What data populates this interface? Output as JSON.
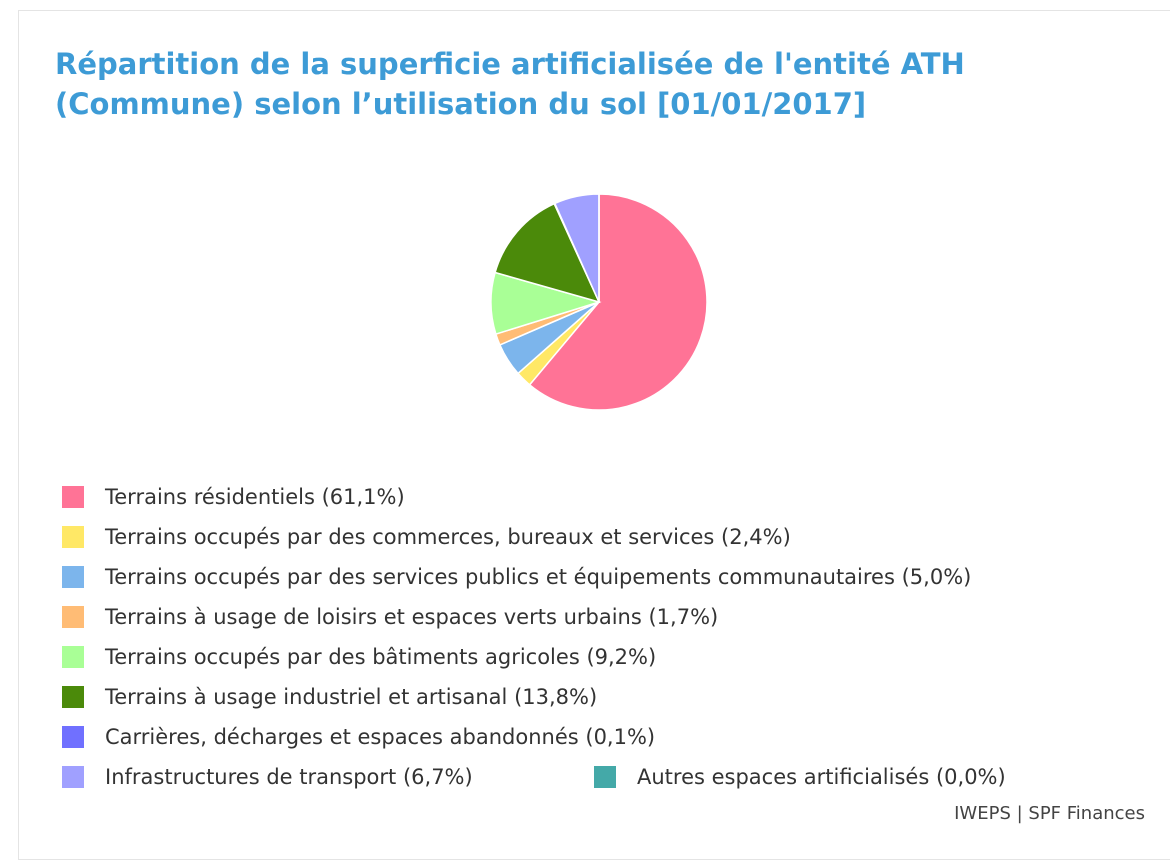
{
  "chart_data": {
    "type": "pie",
    "title": "Répartition de la superficie artificialisée de l'entité ATH (Commune) selon l’utilisation du sol [01/01/2017]",
    "categories": [
      "Terrains résidentiels",
      "Terrains occupés par des commerces, bureaux et services",
      "Terrains occupés par des services publics et équipements communautaires",
      "Terrains à usage de loisirs et espaces verts urbains",
      "Terrains occupés par des bâtiments agricoles",
      "Terrains à usage industriel et artisanal",
      "Carrières, décharges et espaces abandonnés",
      "Infrastructures de transport",
      "Autres espaces artificialisés"
    ],
    "values": [
      61.1,
      2.4,
      5.0,
      1.7,
      9.2,
      13.8,
      0.1,
      6.7,
      0.0
    ],
    "value_labels": [
      "(61,1%)",
      "(2,4%)",
      "(5,0%)",
      "(1,7%)",
      "(9,2%)",
      "(13,8%)",
      "(0,1%)",
      "(6,7%)",
      "(0,0%)"
    ],
    "colors": [
      "#ff7396",
      "#ffe866",
      "#7cb5ec",
      "#ffbc75",
      "#a9ff96",
      "#4b8a0a",
      "#7070ff",
      "#a0a0ff",
      "#44a9a8"
    ],
    "legend": "bottom",
    "credits": "IWEPS | SPF Finances"
  }
}
